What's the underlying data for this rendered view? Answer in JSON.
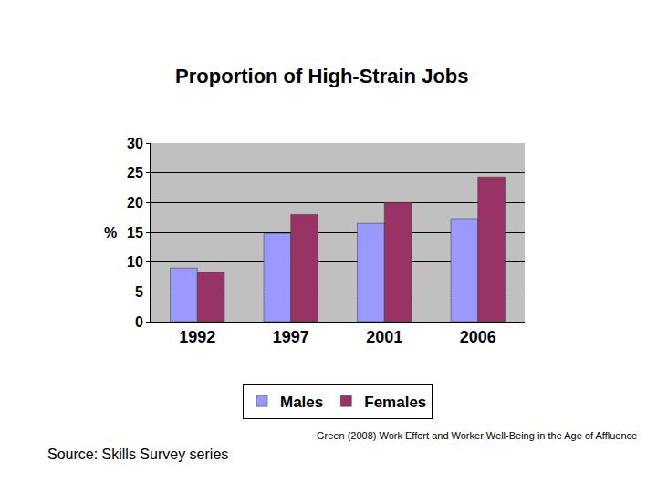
{
  "chart_data": {
    "type": "bar",
    "title": "Proportion of High-Strain Jobs",
    "y_label": "%",
    "categories": [
      "1992",
      "1997",
      "2001",
      "2006"
    ],
    "series": [
      {
        "name": "Males",
        "color": "#9999ff",
        "values": [
          9,
          14.8,
          16.5,
          17.3
        ]
      },
      {
        "name": "Females",
        "color": "#993366",
        "values": [
          8.3,
          18,
          20,
          24.3
        ]
      }
    ],
    "ylim": [
      0,
      30
    ],
    "yticks": [
      0,
      5,
      10,
      15,
      20,
      25,
      30
    ],
    "grid": true,
    "legend": "bottom",
    "annotations": [
      "Green (2008) Work Effort and Worker Well-Being in the Age of Affluence",
      "Source: Skills Survey series"
    ]
  }
}
